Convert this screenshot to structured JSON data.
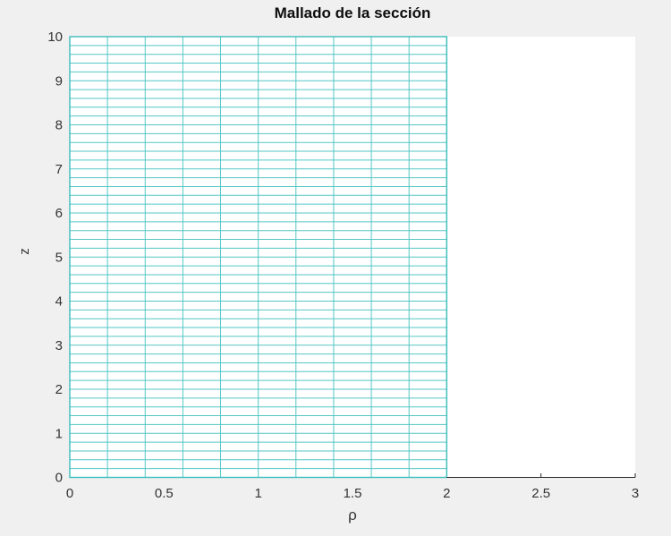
{
  "figure": {
    "background_color": "#f0f0f0",
    "axes_background_color": "#ffffff"
  },
  "chart_data": {
    "type": "mesh",
    "title": "Mallado de la sección",
    "xlabel": "ρ",
    "ylabel": "z",
    "xlim": [
      0,
      3
    ],
    "ylim": [
      0,
      10
    ],
    "xticks": [
      0,
      0.5,
      1,
      1.5,
      2,
      2.5,
      3
    ],
    "xtick_labels": [
      "0",
      "0.5",
      "1",
      "1.5",
      "2",
      "2.5",
      "3"
    ],
    "yticks": [
      0,
      1,
      2,
      3,
      4,
      5,
      6,
      7,
      8,
      9,
      10
    ],
    "ytick_labels": [
      "0",
      "1",
      "2",
      "3",
      "4",
      "5",
      "6",
      "7",
      "8",
      "9",
      "10"
    ],
    "grid": false,
    "legend": null,
    "tick_direction": "in",
    "axis_line_color": "#262626",
    "tick_label_color": "#333333",
    "title_color": "#0d0d0d",
    "mesh": {
      "rho_min": 0,
      "rho_max": 2,
      "d_rho": 0.2,
      "n_cols": 10,
      "z_min": 0,
      "z_max": 10,
      "d_z": 0.2,
      "n_rows": 50,
      "line_color": "#55c6c6",
      "border_color": "#3cbdbd",
      "face_color": "#ffffff"
    }
  }
}
